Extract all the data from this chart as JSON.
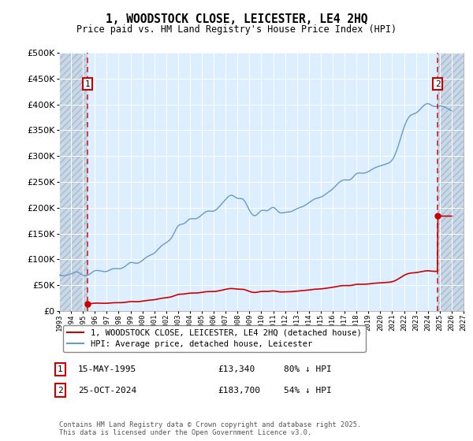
{
  "title": "1, WOODSTOCK CLOSE, LEICESTER, LE4 2HQ",
  "subtitle": "Price paid vs. HM Land Registry's House Price Index (HPI)",
  "legend_label_red": "1, WOODSTOCK CLOSE, LEICESTER, LE4 2HQ (detached house)",
  "legend_label_blue": "HPI: Average price, detached house, Leicester",
  "point1_label": "1",
  "point1_date": "15-MAY-1995",
  "point1_price": "£13,340",
  "point1_hpi": "80% ↓ HPI",
  "point1_year": 1995.37,
  "point1_value": 13340,
  "point2_label": "2",
  "point2_date": "25-OCT-2024",
  "point2_price": "£183,700",
  "point2_hpi": "54% ↓ HPI",
  "point2_year": 2024.82,
  "point2_value": 183700,
  "copyright": "Contains HM Land Registry data © Crown copyright and database right 2025.\nThis data is licensed under the Open Government Licence v3.0.",
  "ylim": [
    0,
    500000
  ],
  "xlim_left": 1993.0,
  "xlim_right": 2027.0,
  "plot_bg_color": "#ddeeff",
  "hatch_color": "#c8d8e8",
  "grid_color": "#ffffff",
  "red_line_color": "#cc0000",
  "blue_line_color": "#6699cc",
  "dashed_color": "#cc0000",
  "hatch_left_end": 1995.37,
  "hatch_right_start": 2024.82
}
